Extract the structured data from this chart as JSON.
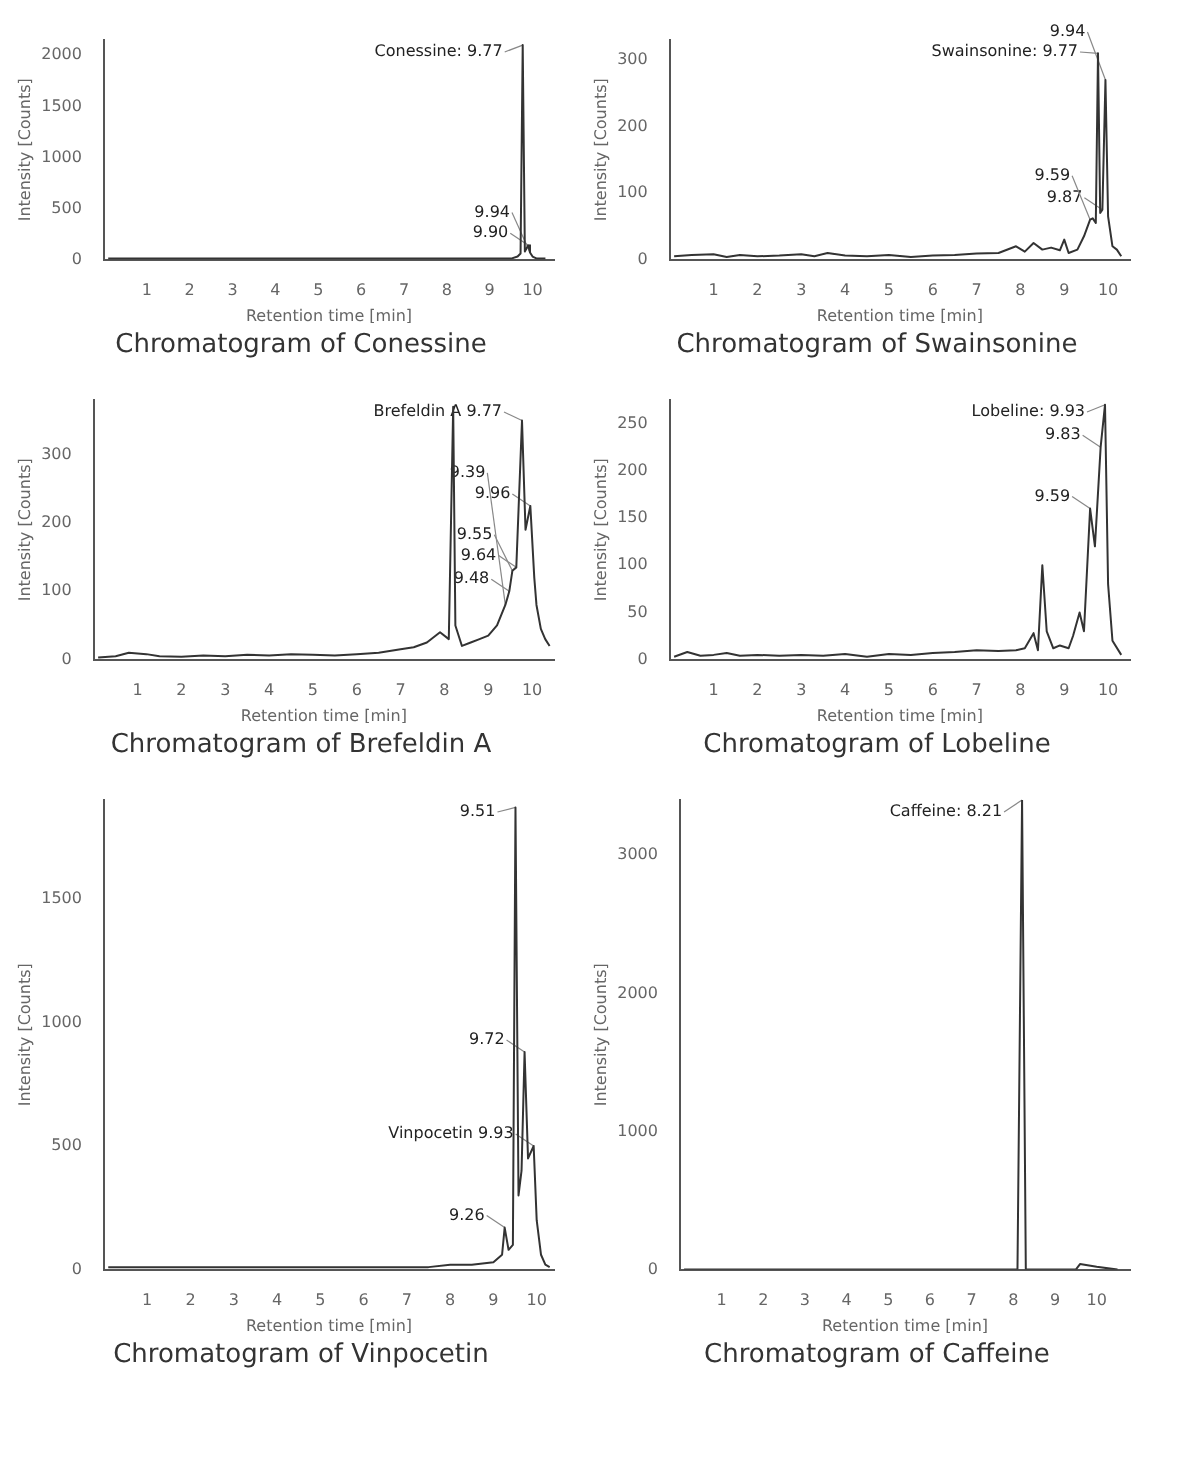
{
  "chart_data": [
    {
      "type": "line",
      "title": "Chromatogram of Conessine",
      "xlabel": "Retention time [min]",
      "ylabel": "Intensity [Counts]",
      "xlim": [
        0,
        10.5
      ],
      "xticks": [
        1,
        2,
        3,
        4,
        5,
        6,
        7,
        8,
        9,
        10
      ],
      "ylim": [
        0,
        2150
      ],
      "yticks": [
        0,
        500,
        1000,
        1500,
        2000
      ],
      "marker": "none",
      "series": [
        {
          "color": "#333333",
          "x": [
            0.1,
            0.5,
            1,
            1.5,
            2,
            2.5,
            3,
            3.5,
            4,
            4.5,
            5,
            5.5,
            6,
            6.5,
            7,
            7.5,
            8,
            8.5,
            9,
            9.5,
            9.65,
            9.72,
            9.77,
            9.82,
            9.9,
            9.94,
            10.0,
            10.1,
            10.3
          ],
          "values": [
            10,
            10,
            10,
            10,
            10,
            10,
            10,
            10,
            10,
            10,
            10,
            10,
            10,
            10,
            10,
            10,
            10,
            10,
            10,
            10,
            30,
            60,
            2100,
            80,
            140,
            70,
            30,
            10,
            10
          ]
        }
      ],
      "annotations": [
        {
          "text": "Conessine: 9.77",
          "x": 9.77,
          "y": 2100
        },
        {
          "text": "9.90",
          "x": 9.9,
          "y": 140
        },
        {
          "text": "9.94",
          "x": 9.94,
          "y": 70
        }
      ]
    },
    {
      "type": "line",
      "title": "Chromatogram of Swainsonine",
      "xlabel": "Retention time [min]",
      "ylabel": "Intensity [Counts]",
      "xlim": [
        0,
        10.5
      ],
      "xticks": [
        1,
        2,
        3,
        4,
        5,
        6,
        7,
        8,
        9,
        10
      ],
      "ylim": [
        0,
        330
      ],
      "yticks": [
        0,
        100,
        200,
        300
      ],
      "marker": "none",
      "series": [
        {
          "color": "#333333",
          "x": [
            0.1,
            0.5,
            1,
            1.3,
            1.6,
            2,
            2.5,
            3,
            3.3,
            3.6,
            4,
            4.5,
            5,
            5.5,
            6,
            6.5,
            7,
            7.5,
            7.9,
            8.1,
            8.3,
            8.5,
            8.7,
            8.9,
            9.0,
            9.1,
            9.3,
            9.45,
            9.59,
            9.65,
            9.72,
            9.77,
            9.82,
            9.87,
            9.94,
            10.0,
            10.1,
            10.2,
            10.3
          ],
          "values": [
            5,
            7,
            8,
            4,
            7,
            5,
            6,
            8,
            5,
            10,
            6,
            5,
            7,
            4,
            6,
            7,
            9,
            10,
            20,
            12,
            25,
            15,
            18,
            14,
            30,
            10,
            15,
            35,
            60,
            62,
            55,
            310,
            70,
            75,
            270,
            65,
            20,
            15,
            5
          ]
        }
      ],
      "annotations": [
        {
          "text": "Swainsonine: 9.77",
          "x": 9.77,
          "y": 310
        },
        {
          "text": "9.94",
          "x": 9.94,
          "y": 270
        },
        {
          "text": "9.87",
          "x": 9.87,
          "y": 75
        },
        {
          "text": "9.59",
          "x": 9.59,
          "y": 60
        }
      ]
    },
    {
      "type": "line",
      "title": "Chromatogram of Brefeldin A",
      "xlabel": "Retention time [min]",
      "ylabel": "Intensity [Counts]",
      "xlim": [
        0,
        10.5
      ],
      "xticks": [
        1,
        2,
        3,
        4,
        5,
        6,
        7,
        8,
        9,
        10
      ],
      "ylim": [
        0,
        380
      ],
      "yticks": [
        0,
        100,
        200,
        300
      ],
      "marker": "none",
      "series": [
        {
          "color": "#333333",
          "x": [
            0.1,
            0.5,
            0.8,
            1.2,
            1.5,
            2,
            2.5,
            3,
            3.5,
            4,
            4.5,
            5,
            5.5,
            6,
            6.5,
            7,
            7.3,
            7.6,
            7.9,
            8.1,
            8.2,
            8.25,
            8.4,
            8.6,
            8.8,
            9.0,
            9.2,
            9.39,
            9.48,
            9.55,
            9.64,
            9.77,
            9.85,
            9.96,
            10.05,
            10.1,
            10.2,
            10.3,
            10.4
          ],
          "values": [
            3,
            5,
            10,
            8,
            5,
            4,
            6,
            5,
            7,
            6,
            8,
            7,
            6,
            8,
            10,
            15,
            18,
            25,
            40,
            30,
            370,
            50,
            20,
            25,
            30,
            35,
            50,
            80,
            100,
            130,
            135,
            350,
            190,
            225,
            120,
            80,
            45,
            30,
            20
          ]
        }
      ],
      "annotations": [
        {
          "text": "Brefeldin A 9.77",
          "x": 9.77,
          "y": 350
        },
        {
          "text": "9.96",
          "x": 9.96,
          "y": 225
        },
        {
          "text": "9.64",
          "x": 9.64,
          "y": 135
        },
        {
          "text": "9.55",
          "x": 9.55,
          "y": 130
        },
        {
          "text": "9.48",
          "x": 9.48,
          "y": 100
        },
        {
          "text": "9.39",
          "x": 9.39,
          "y": 80
        }
      ]
    },
    {
      "type": "line",
      "title": "Chromatogram of Lobeline",
      "xlabel": "Retention time [min]",
      "ylabel": "Intensity [Counts]",
      "xlim": [
        0,
        10.5
      ],
      "xticks": [
        1,
        2,
        3,
        4,
        5,
        6,
        7,
        8,
        9,
        10
      ],
      "ylim": [
        0,
        275
      ],
      "yticks": [
        0,
        50,
        100,
        150,
        200,
        250
      ],
      "marker": "none",
      "series": [
        {
          "color": "#333333",
          "x": [
            0.1,
            0.4,
            0.7,
            1,
            1.3,
            1.6,
            2,
            2.5,
            3,
            3.5,
            4,
            4.5,
            5,
            5.5,
            6,
            6.5,
            7,
            7.5,
            7.9,
            8.1,
            8.3,
            8.4,
            8.5,
            8.6,
            8.75,
            8.9,
            9.1,
            9.2,
            9.35,
            9.45,
            9.59,
            9.7,
            9.83,
            9.93,
            10.0,
            10.1,
            10.3
          ],
          "values": [
            3,
            8,
            4,
            5,
            7,
            4,
            5,
            4,
            5,
            4,
            6,
            3,
            6,
            5,
            7,
            8,
            10,
            9,
            10,
            12,
            28,
            10,
            100,
            30,
            12,
            15,
            12,
            25,
            50,
            30,
            160,
            120,
            225,
            270,
            80,
            20,
            5
          ]
        }
      ],
      "annotations": [
        {
          "text": "Lobeline: 9.93",
          "x": 9.93,
          "y": 270
        },
        {
          "text": "9.83",
          "x": 9.83,
          "y": 225
        },
        {
          "text": "9.59",
          "x": 9.59,
          "y": 160
        }
      ]
    },
    {
      "type": "line",
      "title": "Chromatogram of Vinpocetin",
      "xlabel": "Retention time [min]",
      "ylabel": "Intensity [Counts]",
      "xlim": [
        0,
        10.4
      ],
      "xticks": [
        1,
        2,
        3,
        4,
        5,
        6,
        7,
        8,
        9,
        10
      ],
      "ylim": [
        0,
        1900
      ],
      "yticks": [
        0,
        500,
        1000,
        1500
      ],
      "marker": "none",
      "series": [
        {
          "color": "#333333",
          "x": [
            0.1,
            1,
            2,
            3,
            4,
            5,
            6,
            7,
            7.5,
            8,
            8.5,
            9,
            9.2,
            9.26,
            9.35,
            9.45,
            9.51,
            9.58,
            9.65,
            9.72,
            9.8,
            9.93,
            10.0,
            10.1,
            10.2,
            10.3
          ],
          "values": [
            10,
            10,
            10,
            10,
            10,
            10,
            10,
            10,
            10,
            20,
            20,
            30,
            60,
            170,
            80,
            100,
            1870,
            300,
            400,
            880,
            450,
            500,
            200,
            60,
            20,
            10
          ]
        }
      ],
      "annotations": [
        {
          "text": "9.51",
          "x": 9.51,
          "y": 1870
        },
        {
          "text": "9.72",
          "x": 9.72,
          "y": 880
        },
        {
          "text": "Vinpocetin 9.93",
          "x": 9.93,
          "y": 500
        },
        {
          "text": "9.26",
          "x": 9.26,
          "y": 170
        }
      ]
    },
    {
      "type": "line",
      "title": "Chromatogram of Caffeine",
      "xlabel": "Retention time [min]",
      "ylabel": "Intensity [Counts]",
      "xlim": [
        0,
        10.8
      ],
      "xticks": [
        1,
        2,
        3,
        4,
        5,
        6,
        7,
        8,
        9,
        10
      ],
      "ylim": [
        0,
        3400
      ],
      "yticks": [
        0,
        1000,
        2000,
        3000
      ],
      "marker": "none",
      "series": [
        {
          "color": "#333333",
          "x": [
            0.1,
            1,
            2,
            3,
            4,
            5,
            6,
            7,
            7.8,
            8.1,
            8.21,
            8.3,
            8.5,
            9,
            9.5,
            9.6,
            10,
            10.5
          ],
          "values": [
            0,
            0,
            0,
            0,
            0,
            0,
            0,
            0,
            0,
            0,
            3400,
            0,
            0,
            0,
            0,
            40,
            20,
            0
          ]
        }
      ],
      "annotations": [
        {
          "text": "Caffeine: 8.21",
          "x": 8.21,
          "y": 3400
        }
      ]
    }
  ]
}
